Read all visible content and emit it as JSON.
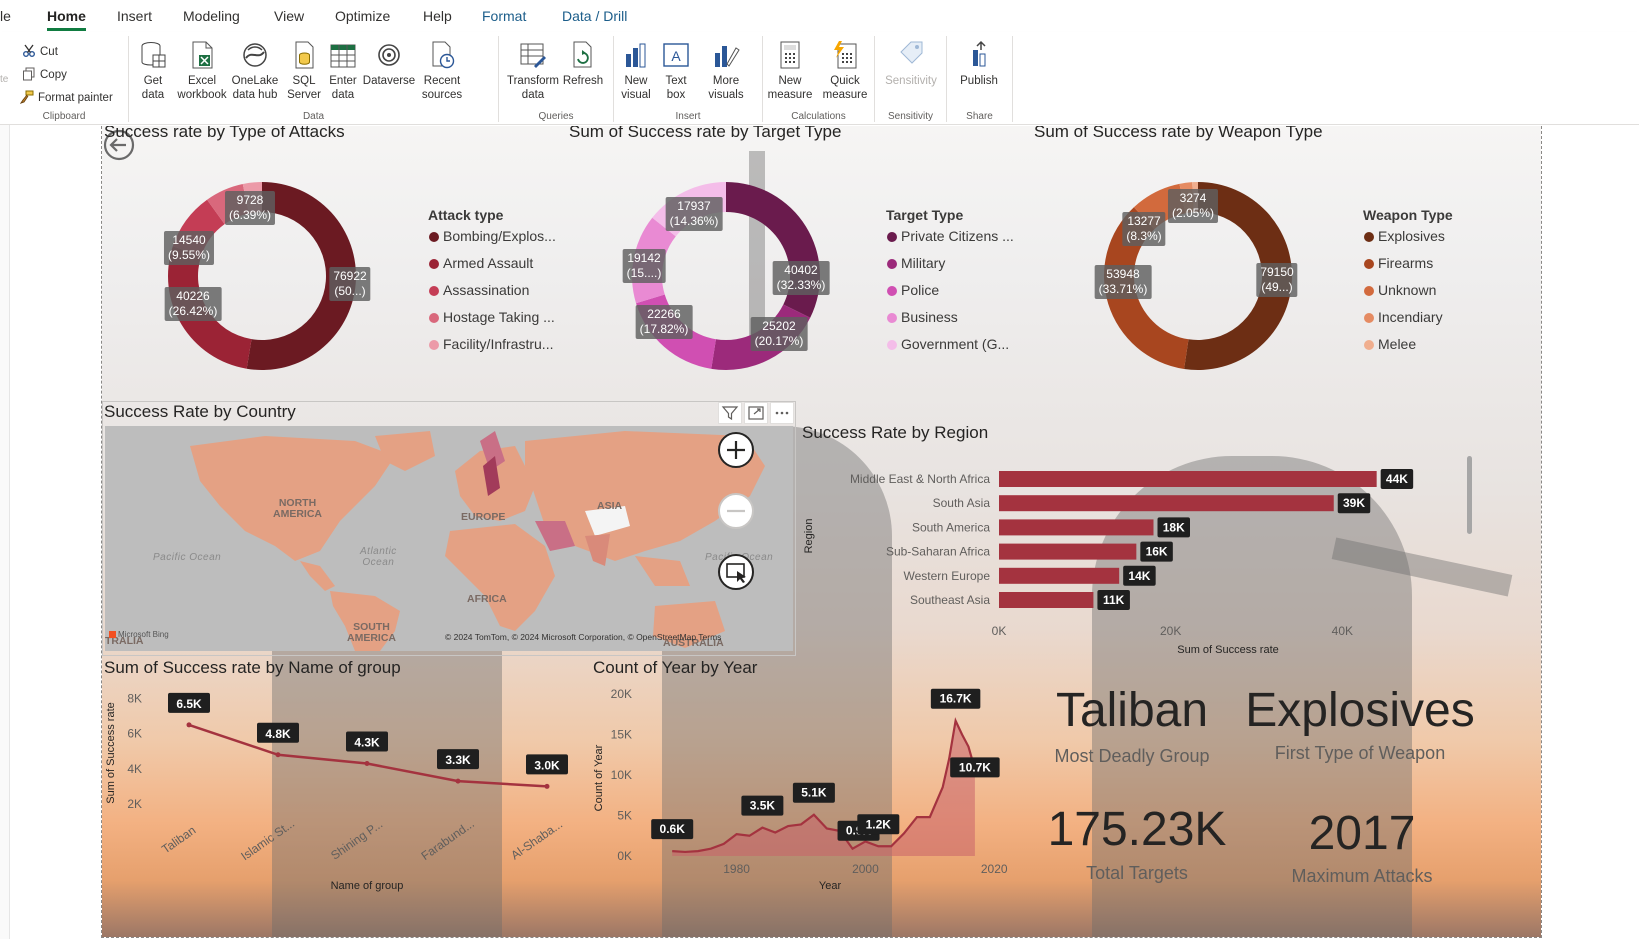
{
  "menu": {
    "tabs": [
      "le",
      "Home",
      "Insert",
      "Modeling",
      "View",
      "Optimize",
      "Help",
      "Format",
      "Data / Drill"
    ],
    "active": "Home"
  },
  "ribbon": {
    "clipboard": {
      "cut": "Cut",
      "copy": "Copy",
      "format_painter": "Format painter",
      "label": "Clipboard",
      "edge_text": "te"
    },
    "data": {
      "get_data": "Get data",
      "excel": "Excel workbook",
      "onelake": "OneLake data hub",
      "sql": "SQL Server",
      "enter": "Enter data",
      "dataverse": "Dataverse",
      "recent": "Recent sources",
      "label": "Data"
    },
    "queries": {
      "transform": "Transform data",
      "refresh": "Refresh",
      "label": "Queries"
    },
    "insert": {
      "new_visual": "New visual",
      "text_box": "Text box",
      "more_visuals": "More visuals",
      "label": "Insert"
    },
    "calculations": {
      "new_measure": "New measure",
      "quick_measure": "Quick measure",
      "label": "Calculations"
    },
    "sensitivity": {
      "button": "Sensitivity",
      "label": "Sensitivity"
    },
    "share": {
      "publish": "Publish",
      "label": "Share"
    }
  },
  "colors": {
    "attack": [
      "#6b1a22",
      "#9b2335",
      "#c43d55",
      "#d9687c",
      "#ec9aa8"
    ],
    "target": [
      "#6a1b4d",
      "#9c2a7b",
      "#d04fb2",
      "#e98ad3",
      "#f4bde9"
    ],
    "weapon": [
      "#6d2e14",
      "#a8461f",
      "#d26a3d",
      "#e58b62",
      "#f0ae8e"
    ],
    "bar": "#a4333f",
    "line": "#a4333f",
    "area": "#c9626a"
  },
  "visuals": {
    "attack": {
      "title": "Success rate by Type of Attacks",
      "legend_title": "Attack type",
      "legend": [
        "Bombing/Explos...",
        "Armed Assault",
        "Assassination",
        "Hostage Taking ...",
        "Facility/Infrastru..."
      ],
      "labels": [
        {
          "value": "76922",
          "pct": "(50...)"
        },
        {
          "value": "40226",
          "pct": "(26.42%)"
        },
        {
          "value": "14540",
          "pct": "(9.55%)"
        },
        {
          "value": "9728",
          "pct": "(6.39%)"
        }
      ]
    },
    "target": {
      "title": "Sum of Success rate by Target Type",
      "legend_title": "Target Type",
      "legend": [
        "Private Citizens ...",
        "Military",
        "Police",
        "Business",
        "Government (G..."
      ],
      "labels": [
        {
          "value": "40402",
          "pct": "(32.33%)"
        },
        {
          "value": "25202",
          "pct": "(20.17%)"
        },
        {
          "value": "22266",
          "pct": "(17.82%)"
        },
        {
          "value": "19142",
          "pct": "(15....)"
        },
        {
          "value": "17937",
          "pct": "(14.36%)"
        }
      ]
    },
    "weapon": {
      "title": "Sum of Success rate by Weapon Type",
      "legend_title": "Weapon Type",
      "legend": [
        "Explosives",
        "Firearms",
        "Unknown",
        "Incendiary",
        "Melee"
      ],
      "labels": [
        {
          "value": "79150",
          "pct": "(49...)"
        },
        {
          "value": "53948",
          "pct": "(33.71%)"
        },
        {
          "value": "13277",
          "pct": "(8.3%)"
        },
        {
          "value": "3274",
          "pct": "(2.05%)"
        }
      ]
    },
    "country": {
      "title": "Success Rate by Country",
      "labels": {
        "na": "NORTH\nAMERICA",
        "eu": "EUROPE",
        "as": "ASIA",
        "af": "AFRICA",
        "sa": "SOUTH\nAMERICA",
        "au": "AUSTRALIA",
        "au2": "TRALIA"
      },
      "oceans": {
        "pacific_w": "Pacific Ocean",
        "atlantic": "Atlantic\nOcean",
        "pacific_e": "Pacific Ocean"
      },
      "attribution": "© 2024 TomTom, © 2024 Microsoft Corporation, © OpenStreetMap  Terms",
      "bing": "Microsoft Bing"
    },
    "region": {
      "title": "Success Rate by Region",
      "y_title": "Region",
      "x_title": "Sum of Success rate"
    },
    "group": {
      "title": "Sum of Success rate by Name of group",
      "y_title": "Sum of Success rate",
      "x_title": "Name of group"
    },
    "year": {
      "title": "Count of Year by Year",
      "y_title": "Count of Year",
      "x_title": "Year"
    }
  },
  "kpis": [
    {
      "value": "Taliban",
      "label": "Most Deadly Group"
    },
    {
      "value": "Explosives",
      "label": "First Type of Weapon"
    },
    {
      "value": "175.23K",
      "label": "Total Targets"
    },
    {
      "value": "2017",
      "label": "Maximum Attacks"
    }
  ],
  "chart_data": [
    {
      "type": "pie",
      "title": "Success rate by Type of Attacks",
      "categories": [
        "Bombing/Explosion",
        "Armed Assault",
        "Assassination",
        "Hostage Taking",
        "Facility/Infrastructure"
      ],
      "values": [
        76922,
        40226,
        14540,
        9728,
        4800
      ]
    },
    {
      "type": "pie",
      "title": "Sum of Success rate by Target Type",
      "categories": [
        "Private Citizens",
        "Military",
        "Police",
        "Business",
        "Government"
      ],
      "values": [
        40402,
        25202,
        22266,
        19142,
        17937
      ]
    },
    {
      "type": "pie",
      "title": "Sum of Success rate by Weapon Type",
      "categories": [
        "Explosives",
        "Firearms",
        "Unknown",
        "Incendiary",
        "Melee"
      ],
      "values": [
        79150,
        53948,
        13277,
        3274,
        1500
      ]
    },
    {
      "type": "bar",
      "title": "Success Rate by Region",
      "categories": [
        "Middle East & North Africa",
        "South Asia",
        "South America",
        "Sub-Saharan Africa",
        "Western Europe",
        "Southeast Asia"
      ],
      "values": [
        44000,
        39000,
        18000,
        16000,
        14000,
        11000
      ],
      "value_labels": [
        "44K",
        "39K",
        "18K",
        "16K",
        "14K",
        "11K"
      ],
      "xlim": [
        0,
        48000
      ],
      "xticks": [
        0,
        20000,
        40000
      ],
      "xtick_labels": [
        "0K",
        "20K",
        "40K"
      ],
      "xlabel": "Sum of Success rate",
      "ylabel": "Region"
    },
    {
      "type": "line",
      "title": "Sum of Success rate by Name of group",
      "categories": [
        "Taliban",
        "Islamic St...",
        "Shining P...",
        "Farabund...",
        "Al-Shaba..."
      ],
      "values": [
        6500,
        4800,
        4300,
        3300,
        3000
      ],
      "value_labels": [
        "6.5K",
        "4.8K",
        "4.3K",
        "3.3K",
        "3.0K"
      ],
      "ylim": [
        1200,
        8600
      ],
      "yticks": [
        2000,
        4000,
        6000,
        8000
      ],
      "ytick_labels": [
        "2K",
        "4K",
        "6K",
        "8K"
      ],
      "xlabel": "Name of group",
      "ylabel": "Sum of Success rate"
    },
    {
      "type": "area",
      "title": "Count of Year by Year",
      "x": [
        1970,
        1972,
        1974,
        1976,
        1978,
        1980,
        1982,
        1984,
        1986,
        1988,
        1990,
        1992,
        1994,
        1996,
        1998,
        2000,
        2002,
        2004,
        2006,
        2008,
        2010,
        2012,
        2013,
        2014,
        2015,
        2016,
        2017
      ],
      "y": [
        600,
        500,
        600,
        900,
        1500,
        2700,
        2500,
        3500,
        2900,
        3700,
        3900,
        5100,
        3400,
        3100,
        900,
        1800,
        1200,
        1200,
        2800,
        4800,
        4800,
        8500,
        12000,
        16700,
        15000,
        13500,
        10700
      ],
      "point_labels": [
        {
          "x": 1970,
          "y": 600,
          "text": "0.6K"
        },
        {
          "x": 1984,
          "y": 3500,
          "text": "3.5K"
        },
        {
          "x": 1992,
          "y": 5100,
          "text": "5.1K"
        },
        {
          "x": 1998,
          "y": 900,
          "text": "0.9K"
        },
        {
          "x": 2002,
          "y": 1200,
          "text": "1.2K"
        },
        {
          "x": 2014,
          "y": 16700,
          "text": "16.7K"
        },
        {
          "x": 2017,
          "y": 10700,
          "text": "10.7K"
        }
      ],
      "xlim": [
        1965,
        2024
      ],
      "xticks": [
        1980,
        2000,
        2020
      ],
      "ylim": [
        0,
        20000
      ],
      "yticks": [
        0,
        5000,
        10000,
        15000,
        20000
      ],
      "ytick_labels": [
        "0K",
        "5K",
        "10K",
        "15K",
        "20K"
      ],
      "xlabel": "Year",
      "ylabel": "Count of Year"
    }
  ]
}
